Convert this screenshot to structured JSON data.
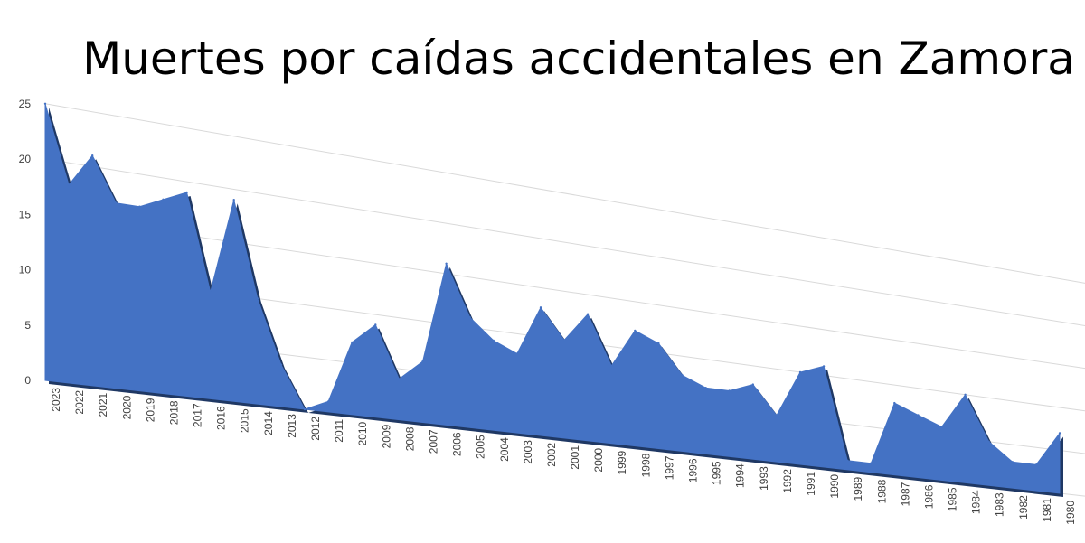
{
  "chart_data": {
    "type": "area",
    "title": "Muertes por caídas accidentales en Zamora",
    "xlabel": "",
    "ylabel": "",
    "ylim": [
      0,
      25
    ],
    "yticks": [
      "0",
      "5",
      "10",
      "15",
      "20",
      "25"
    ],
    "categories": [
      "2023",
      "2022",
      "2021",
      "2020",
      "2019",
      "2018",
      "2017",
      "2016",
      "2015",
      "2014",
      "2013",
      "2012",
      "2011",
      "2010",
      "2009",
      "2008",
      "2007",
      "2006",
      "2005",
      "2004",
      "2003",
      "2002",
      "2001",
      "2000",
      "1999",
      "1998",
      "1997",
      "1996",
      "1995",
      "1994",
      "1993",
      "1992",
      "1991",
      "1990",
      "1989",
      "1988",
      "1987",
      "1986",
      "1985",
      "1984",
      "1983",
      "1982",
      "1981",
      "1980"
    ],
    "values": [
      25,
      18,
      21,
      17,
      17,
      18,
      19,
      10,
      19,
      10,
      4,
      0,
      1,
      7,
      9,
      4,
      6,
      16,
      11,
      9,
      8,
      13,
      10,
      13,
      8,
      12,
      11,
      8,
      7,
      7,
      8,
      5,
      10,
      11,
      1,
      1,
      8,
      7,
      6,
      10,
      5,
      3,
      3,
      7
    ],
    "color": "#4472C4",
    "shadow_color": "#1F3864",
    "grid": true,
    "legend": "none"
  }
}
